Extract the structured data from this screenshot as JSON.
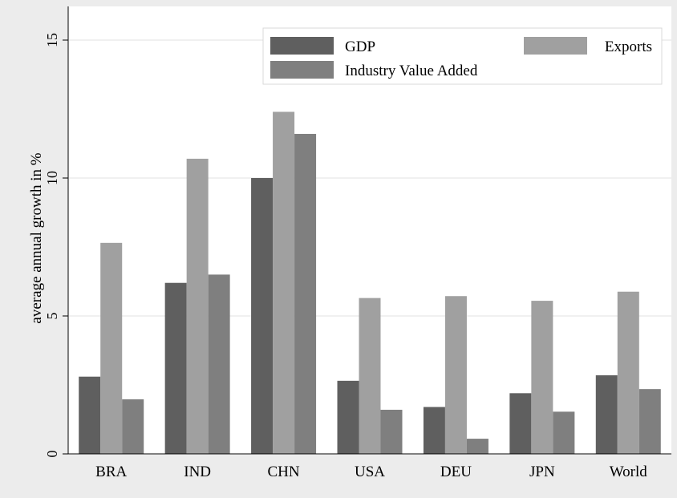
{
  "chart_data": {
    "type": "bar",
    "title": "",
    "xlabel": "",
    "ylabel": "average annual growth in %",
    "ylim": [
      0,
      15
    ],
    "yticks": [
      0,
      5,
      10,
      15
    ],
    "grid": true,
    "legend_position": "top-right",
    "categories": [
      "BRA",
      "IND",
      "CHN",
      "USA",
      "DEU",
      "JPN",
      "World"
    ],
    "series": [
      {
        "name": "GDP",
        "color": "#5f5f5f",
        "values": [
          2.8,
          6.2,
          10.0,
          2.65,
          1.7,
          2.2,
          2.85
        ]
      },
      {
        "name": "Exports",
        "color": "#a0a0a0",
        "values": [
          7.65,
          10.7,
          12.4,
          5.65,
          5.72,
          5.55,
          5.88
        ]
      },
      {
        "name": "Industry Value Added",
        "color": "#7f7f7f",
        "values": [
          1.98,
          6.5,
          11.6,
          1.6,
          0.55,
          1.53,
          2.35
        ]
      }
    ]
  }
}
